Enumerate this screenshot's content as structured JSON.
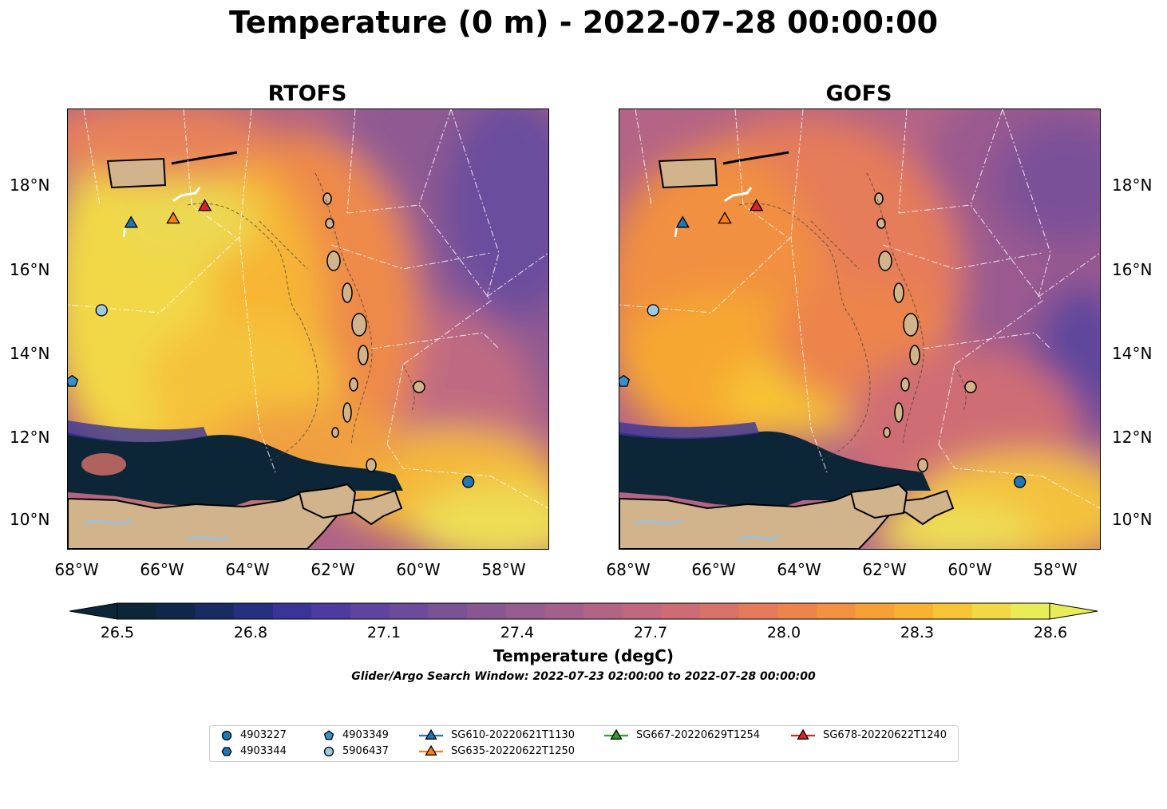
{
  "figure": {
    "title": "Temperature (0 m) - 2022-07-28 00:00:00",
    "panels": [
      {
        "title": "RTOFS"
      },
      {
        "title": "GOFS"
      }
    ],
    "lat_labels": [
      "18°N",
      "16°N",
      "14°N",
      "12°N",
      "10°N"
    ],
    "lon_labels": [
      "68°W",
      "66°W",
      "64°W",
      "62°W",
      "60°W",
      "58°W"
    ],
    "map_extent": {
      "lon": [
        -68.2,
        -56.8
      ],
      "lat": [
        9.3,
        19.8
      ]
    },
    "colorbar": {
      "label": "Temperature (degC)",
      "range": [
        26.5,
        28.6
      ],
      "ticks": [
        "26.5",
        "26.8",
        "27.1",
        "27.4",
        "27.7",
        "28.0",
        "28.3",
        "28.6"
      ],
      "colors": [
        "#0d2637",
        "#11274a",
        "#1a2a62",
        "#272f7f",
        "#3a3496",
        "#4e3b9f",
        "#5f439f",
        "#6d4b9b",
        "#7a5296",
        "#885792",
        "#965c8e",
        "#a4608a",
        "#b26485",
        "#c0687e",
        "#cd6c74",
        "#d97268",
        "#e47a5b",
        "#ec844c",
        "#f2913f",
        "#f6a035",
        "#f8b131",
        "#f7c436",
        "#f1d844",
        "#e8ec56"
      ]
    },
    "search_window": "Glider/Argo Search Window: 2022-07-23 02:00:00 to 2022-07-28 00:00:00",
    "legend": [
      {
        "label": "4903227",
        "marker": "circle",
        "color": "#1f77b4"
      },
      {
        "label": "4903344",
        "marker": "hexagon",
        "color": "#1f77b4"
      },
      {
        "label": "4903349",
        "marker": "pentagon",
        "color": "#3a8fd0"
      },
      {
        "label": "5906437",
        "marker": "circle",
        "color": "#9ecae1"
      },
      {
        "label": "SG610-20220621T1130",
        "marker": "triangle-line",
        "color": "#1f77b4"
      },
      {
        "label": "SG635-20220622T1250",
        "marker": "triangle-line",
        "color": "#ff7f0e"
      },
      {
        "label": "SG667-20220629T1254",
        "marker": "triangle-line",
        "color": "#2ca02c"
      },
      {
        "label": "SG678-20220622T1240",
        "marker": "triangle-line",
        "color": "#d62728"
      }
    ],
    "observations": [
      {
        "id": "SG610-20220621T1130",
        "lon": -66.7,
        "lat": 17.1,
        "marker": "triangle",
        "color": "#1f77b4"
      },
      {
        "id": "SG635-20220622T1250",
        "lon": -65.7,
        "lat": 17.2,
        "marker": "triangle",
        "color": "#ff7f0e"
      },
      {
        "id": "SG678-20220622T1240",
        "lon": -64.95,
        "lat": 17.5,
        "marker": "triangle",
        "color": "#d62728"
      },
      {
        "id": "5906437",
        "lon": -67.4,
        "lat": 15.0,
        "marker": "circle",
        "color": "#9ecae1"
      },
      {
        "id": "4903227",
        "lon": -58.7,
        "lat": 10.9,
        "marker": "circle",
        "color": "#1f77b4"
      },
      {
        "id": "4903349",
        "lon": -68.1,
        "lat": 13.3,
        "marker": "pentagon",
        "color": "#3a8fd0"
      }
    ]
  }
}
